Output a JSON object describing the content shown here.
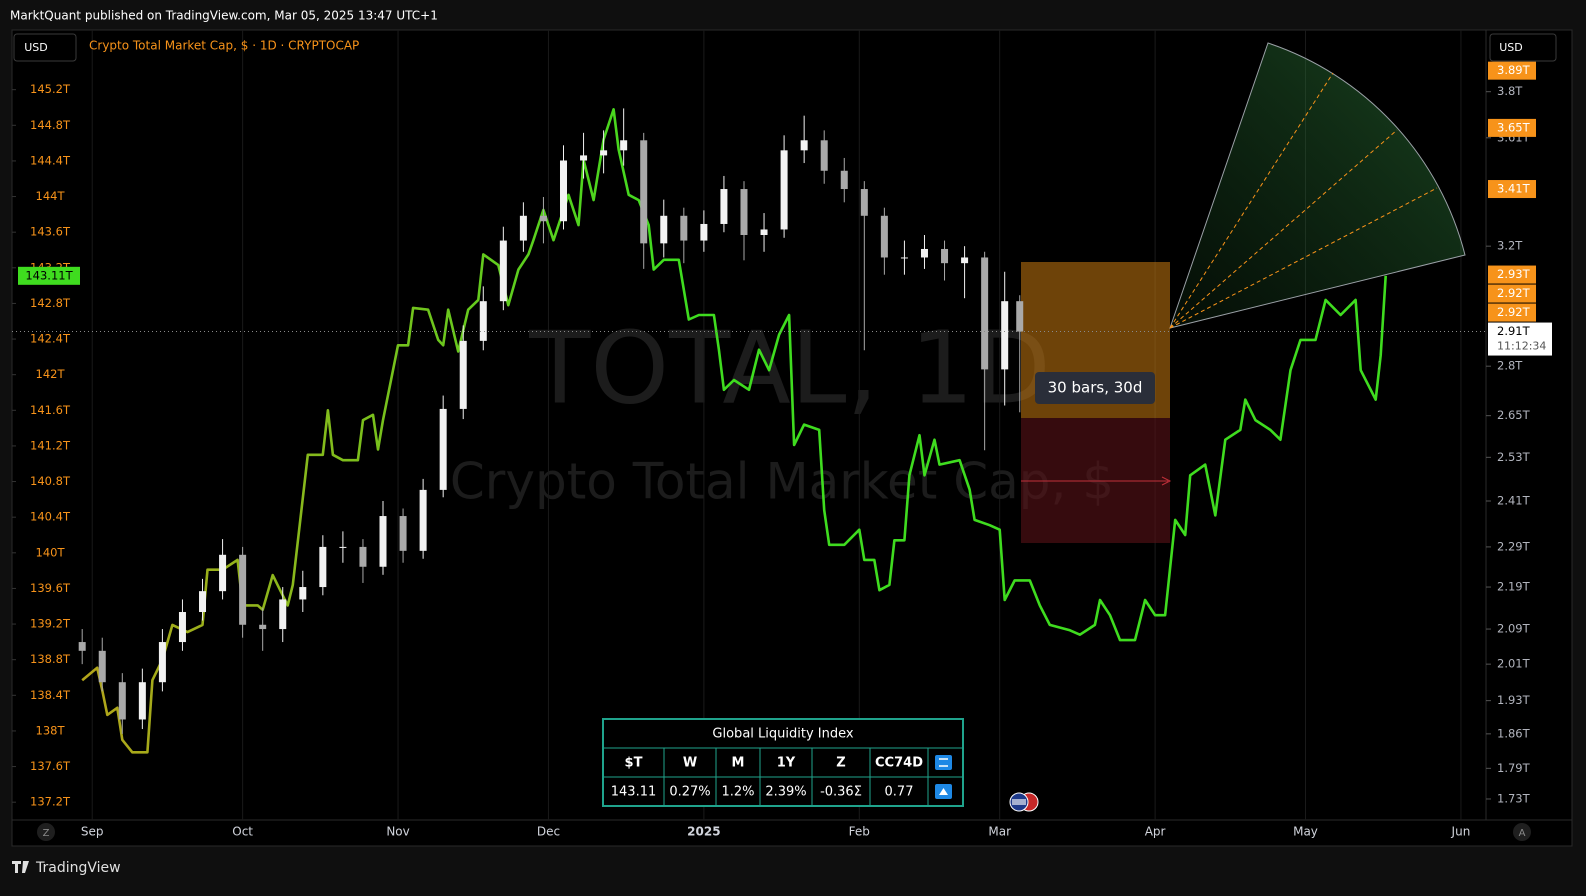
{
  "ui": {
    "publisher": "MarktQuant published on TradingView.com, Mar 05, 2025 13:47 UTC+1",
    "currency_left": "USD",
    "currency_right": "USD",
    "brand": "TradingView",
    "scale_left_button": "Z",
    "scale_right_button": "A"
  },
  "chart_data": {
    "type": "candlestick",
    "title": "Crypto Total Market Cap, $ · 1D · CRYPTOCAP",
    "watermark": "TOTAL, 1D",
    "watermark_subtitle": "Crypto Total Market Cap, $",
    "annotation": "30 bars, 30d",
    "xlim": [
      -16,
      278
    ],
    "xticks": [
      {
        "value": 0,
        "label": "Sep"
      },
      {
        "value": 30,
        "label": "Oct"
      },
      {
        "value": 61,
        "label": "Nov"
      },
      {
        "value": 91,
        "label": "Dec"
      },
      {
        "value": 122,
        "label": "2025"
      },
      {
        "value": 153,
        "label": "Feb"
      },
      {
        "value": 181,
        "label": "Mar"
      },
      {
        "value": 212,
        "label": "Apr"
      },
      {
        "value": 242,
        "label": "May"
      },
      {
        "value": 273,
        "label": "Jun"
      }
    ],
    "x_grid": true,
    "x": [
      -2,
      2,
      6,
      10,
      14,
      18,
      22,
      26,
      30,
      34,
      38,
      42,
      46,
      50,
      54,
      58,
      62,
      66,
      70,
      74,
      78,
      82,
      86,
      90,
      94,
      98,
      102,
      106,
      110,
      114,
      118,
      122,
      126,
      130,
      134,
      138,
      142,
      146,
      150,
      154,
      158,
      162,
      166,
      170,
      174,
      178,
      182,
      185
    ],
    "open": [
      2.06,
      2.04,
      1.97,
      1.89,
      1.97,
      2.06,
      2.13,
      2.18,
      2.27,
      2.1,
      2.09,
      2.16,
      2.19,
      2.29,
      2.29,
      2.24,
      2.37,
      2.28,
      2.44,
      2.67,
      2.88,
      3.01,
      3.22,
      3.31,
      3.29,
      3.52,
      3.54,
      3.56,
      3.6,
      3.21,
      3.31,
      3.22,
      3.28,
      3.41,
      3.24,
      3.26,
      3.56,
      3.6,
      3.48,
      3.41,
      3.31,
      3.16,
      3.16,
      3.19,
      3.14,
      3.16,
      2.79,
      3.01
    ],
    "high": [
      2.09,
      2.07,
      1.99,
      2.0,
      2.09,
      2.16,
      2.21,
      2.31,
      2.29,
      2.14,
      2.19,
      2.23,
      2.32,
      2.33,
      2.31,
      2.41,
      2.39,
      2.47,
      2.71,
      2.93,
      3.06,
      3.27,
      3.36,
      3.38,
      3.58,
      3.63,
      3.64,
      3.73,
      3.63,
      3.37,
      3.34,
      3.33,
      3.46,
      3.44,
      3.32,
      3.62,
      3.7,
      3.64,
      3.53,
      3.44,
      3.34,
      3.22,
      3.24,
      3.22,
      3.2,
      3.18,
      3.11,
      3.03
    ],
    "low": [
      2.01,
      1.95,
      1.86,
      1.87,
      1.95,
      2.04,
      2.11,
      2.16,
      2.07,
      2.04,
      2.06,
      2.13,
      2.17,
      2.25,
      2.2,
      2.22,
      2.25,
      2.26,
      2.42,
      2.64,
      2.85,
      2.98,
      3.18,
      3.21,
      3.26,
      3.45,
      3.47,
      3.5,
      3.12,
      3.16,
      3.14,
      3.18,
      3.25,
      3.15,
      3.18,
      3.23,
      3.51,
      3.43,
      3.36,
      2.85,
      3.1,
      3.1,
      3.12,
      3.08,
      3.02,
      2.55,
      2.68,
      2.66
    ],
    "close": [
      2.04,
      1.97,
      1.89,
      1.97,
      2.06,
      2.13,
      2.18,
      2.27,
      2.1,
      2.09,
      2.16,
      2.19,
      2.29,
      2.29,
      2.24,
      2.37,
      2.28,
      2.44,
      2.67,
      2.88,
      3.01,
      3.22,
      3.31,
      3.29,
      3.52,
      3.54,
      3.56,
      3.6,
      3.21,
      3.31,
      3.22,
      3.28,
      3.41,
      3.24,
      3.26,
      3.56,
      3.6,
      3.48,
      3.41,
      3.31,
      3.16,
      3.16,
      3.19,
      3.14,
      3.16,
      2.79,
      3.01,
      2.91
    ],
    "up_color": "#f2f2f2",
    "down_color": "#a9a9a9",
    "axis": "y2",
    "y2lim": [
      1.69,
      4.07
    ],
    "y2_log": true,
    "y2ticks": [
      {
        "value": 1.73,
        "label": "1.73T"
      },
      {
        "value": 1.79,
        "label": "1.79T"
      },
      {
        "value": 1.86,
        "label": "1.86T"
      },
      {
        "value": 1.93,
        "label": "1.93T"
      },
      {
        "value": 2.01,
        "label": "2.01T"
      },
      {
        "value": 2.09,
        "label": "2.09T"
      },
      {
        "value": 2.19,
        "label": "2.19T"
      },
      {
        "value": 2.29,
        "label": "2.29T"
      },
      {
        "value": 2.41,
        "label": "2.41T"
      },
      {
        "value": 2.53,
        "label": "2.53T"
      },
      {
        "value": 2.65,
        "label": "2.65T"
      },
      {
        "value": 2.8,
        "label": "2.8T"
      },
      {
        "value": 3.2,
        "label": "3.2T"
      },
      {
        "value": 3.61,
        "label": "3.61T"
      },
      {
        "value": 3.8,
        "label": "3.8T"
      }
    ],
    "y2_last": {
      "value": 2.91,
      "label": "2.91T"
    },
    "countdown": "11:12:34",
    "y2_price_labels": [
      {
        "value": 2.92,
        "label": "2.92T"
      },
      {
        "value": 2.92,
        "label": "2.92T"
      },
      {
        "value": 2.93,
        "label": "2.93T"
      },
      {
        "value": 3.41,
        "label": "3.41T"
      },
      {
        "value": 3.65,
        "label": "3.65T"
      },
      {
        "value": 3.89,
        "label": "3.89T"
      }
    ],
    "price_label_color": "#f7931a",
    "ylim": [
      137.0,
      145.87
    ],
    "yticks": [
      {
        "value": 137.2,
        "label": "137.2T"
      },
      {
        "value": 137.6,
        "label": "137.6T"
      },
      {
        "value": 138,
        "label": "138T"
      },
      {
        "value": 138.4,
        "label": "138.4T"
      },
      {
        "value": 138.8,
        "label": "138.8T"
      },
      {
        "value": 139.2,
        "label": "139.2T"
      },
      {
        "value": 139.6,
        "label": "139.6T"
      },
      {
        "value": 140,
        "label": "140T"
      },
      {
        "value": 140.4,
        "label": "140.4T"
      },
      {
        "value": 140.8,
        "label": "140.8T"
      },
      {
        "value": 141.2,
        "label": "141.2T"
      },
      {
        "value": 141.6,
        "label": "141.6T"
      },
      {
        "value": 142,
        "label": "142T"
      },
      {
        "value": 142.4,
        "label": "142.4T"
      },
      {
        "value": 142.8,
        "label": "142.8T"
      },
      {
        "value": 143.2,
        "label": "143.2T"
      },
      {
        "value": 143.6,
        "label": "143.6T"
      },
      {
        "value": 144,
        "label": "144T"
      },
      {
        "value": 144.4,
        "label": "144.4T"
      },
      {
        "value": 144.8,
        "label": "144.8T"
      },
      {
        "value": 145.2,
        "label": "145.2T"
      }
    ],
    "y_axis_color": "#f7931a",
    "y_last": {
      "value": 143.11,
      "label": "143.11T"
    },
    "line": {
      "type": "line",
      "color": "#3fdc1f",
      "gradient_from": "#b3a41a",
      "x": [
        -2,
        1,
        2,
        3,
        5,
        6,
        8,
        11,
        12,
        14,
        16,
        19,
        22,
        23,
        26,
        29,
        30,
        33,
        34,
        36,
        39,
        40,
        43,
        46,
        47,
        48,
        50,
        53,
        54,
        56,
        57,
        58,
        61,
        63,
        64,
        67,
        69,
        70,
        71,
        73,
        75,
        77,
        78,
        81,
        83,
        85,
        87,
        88,
        90,
        92,
        95,
        97,
        98,
        100,
        102,
        104,
        105,
        107,
        109,
        111,
        112,
        114,
        117,
        119,
        121,
        124,
        125,
        126,
        128,
        131,
        133,
        135,
        137,
        139,
        140,
        142,
        145,
        146,
        147,
        150,
        153,
        154,
        156,
        157,
        159,
        160,
        162,
        163,
        165,
        166,
        168,
        169,
        173,
        175,
        176,
        179,
        181,
        182,
        184,
        187,
        189,
        191,
        195,
        197,
        200,
        201,
        203,
        205,
        208,
        210,
        212,
        214,
        216,
        218,
        219,
        222,
        224,
        226,
        229,
        230,
        232,
        235,
        237,
        239,
        241,
        244,
        246,
        249,
        252,
        253,
        256,
        257,
        258
      ],
      "values": [
        138.57,
        138.71,
        138.46,
        138.18,
        138.26,
        137.9,
        137.76,
        137.76,
        138.57,
        138.8,
        139.19,
        139.11,
        139.19,
        139.81,
        139.81,
        139.92,
        139.41,
        139.41,
        139.36,
        139.75,
        139.41,
        139.64,
        141.1,
        141.1,
        141.6,
        141.1,
        141.04,
        141.04,
        141.49,
        141.55,
        141.16,
        141.49,
        142.33,
        142.33,
        142.75,
        142.73,
        142.39,
        142.33,
        142.73,
        142.26,
        142.73,
        142.84,
        143.35,
        143.23,
        142.78,
        143.18,
        143.35,
        143.51,
        143.85,
        143.51,
        144.02,
        143.68,
        144.41,
        143.96,
        144.64,
        144.98,
        144.53,
        144.02,
        143.96,
        143.68,
        143.18,
        143.29,
        143.29,
        142.62,
        142.67,
        142.67,
        142.28,
        141.83,
        141.94,
        141.83,
        142.28,
        142.05,
        142.45,
        142.67,
        141.21,
        141.44,
        141.38,
        140.48,
        140.09,
        140.09,
        140.26,
        139.92,
        139.92,
        139.58,
        139.64,
        140.14,
        140.14,
        140.87,
        141.32,
        140.87,
        141.27,
        140.99,
        141.04,
        140.71,
        140.37,
        140.31,
        140.26,
        139.47,
        139.69,
        139.69,
        139.41,
        139.19,
        139.13,
        139.08,
        139.19,
        139.47,
        139.3,
        139.02,
        139.02,
        139.47,
        139.3,
        139.3,
        140.37,
        140.2,
        140.87,
        140.99,
        140.42,
        141.27,
        141.38,
        141.72,
        141.49,
        141.38,
        141.27,
        142.05,
        142.39,
        142.39,
        142.84,
        142.67,
        142.84,
        142.05,
        141.72,
        142.22,
        143.11
      ]
    }
  },
  "table": {
    "title": "Global Liquidity Index",
    "header": [
      "$T",
      "W",
      "M",
      "1Y",
      "Z",
      "CC74D"
    ],
    "row": [
      "143.11",
      "0.27%",
      "1.2%",
      "2.39%",
      "-0.36Σ",
      "0.77"
    ]
  }
}
